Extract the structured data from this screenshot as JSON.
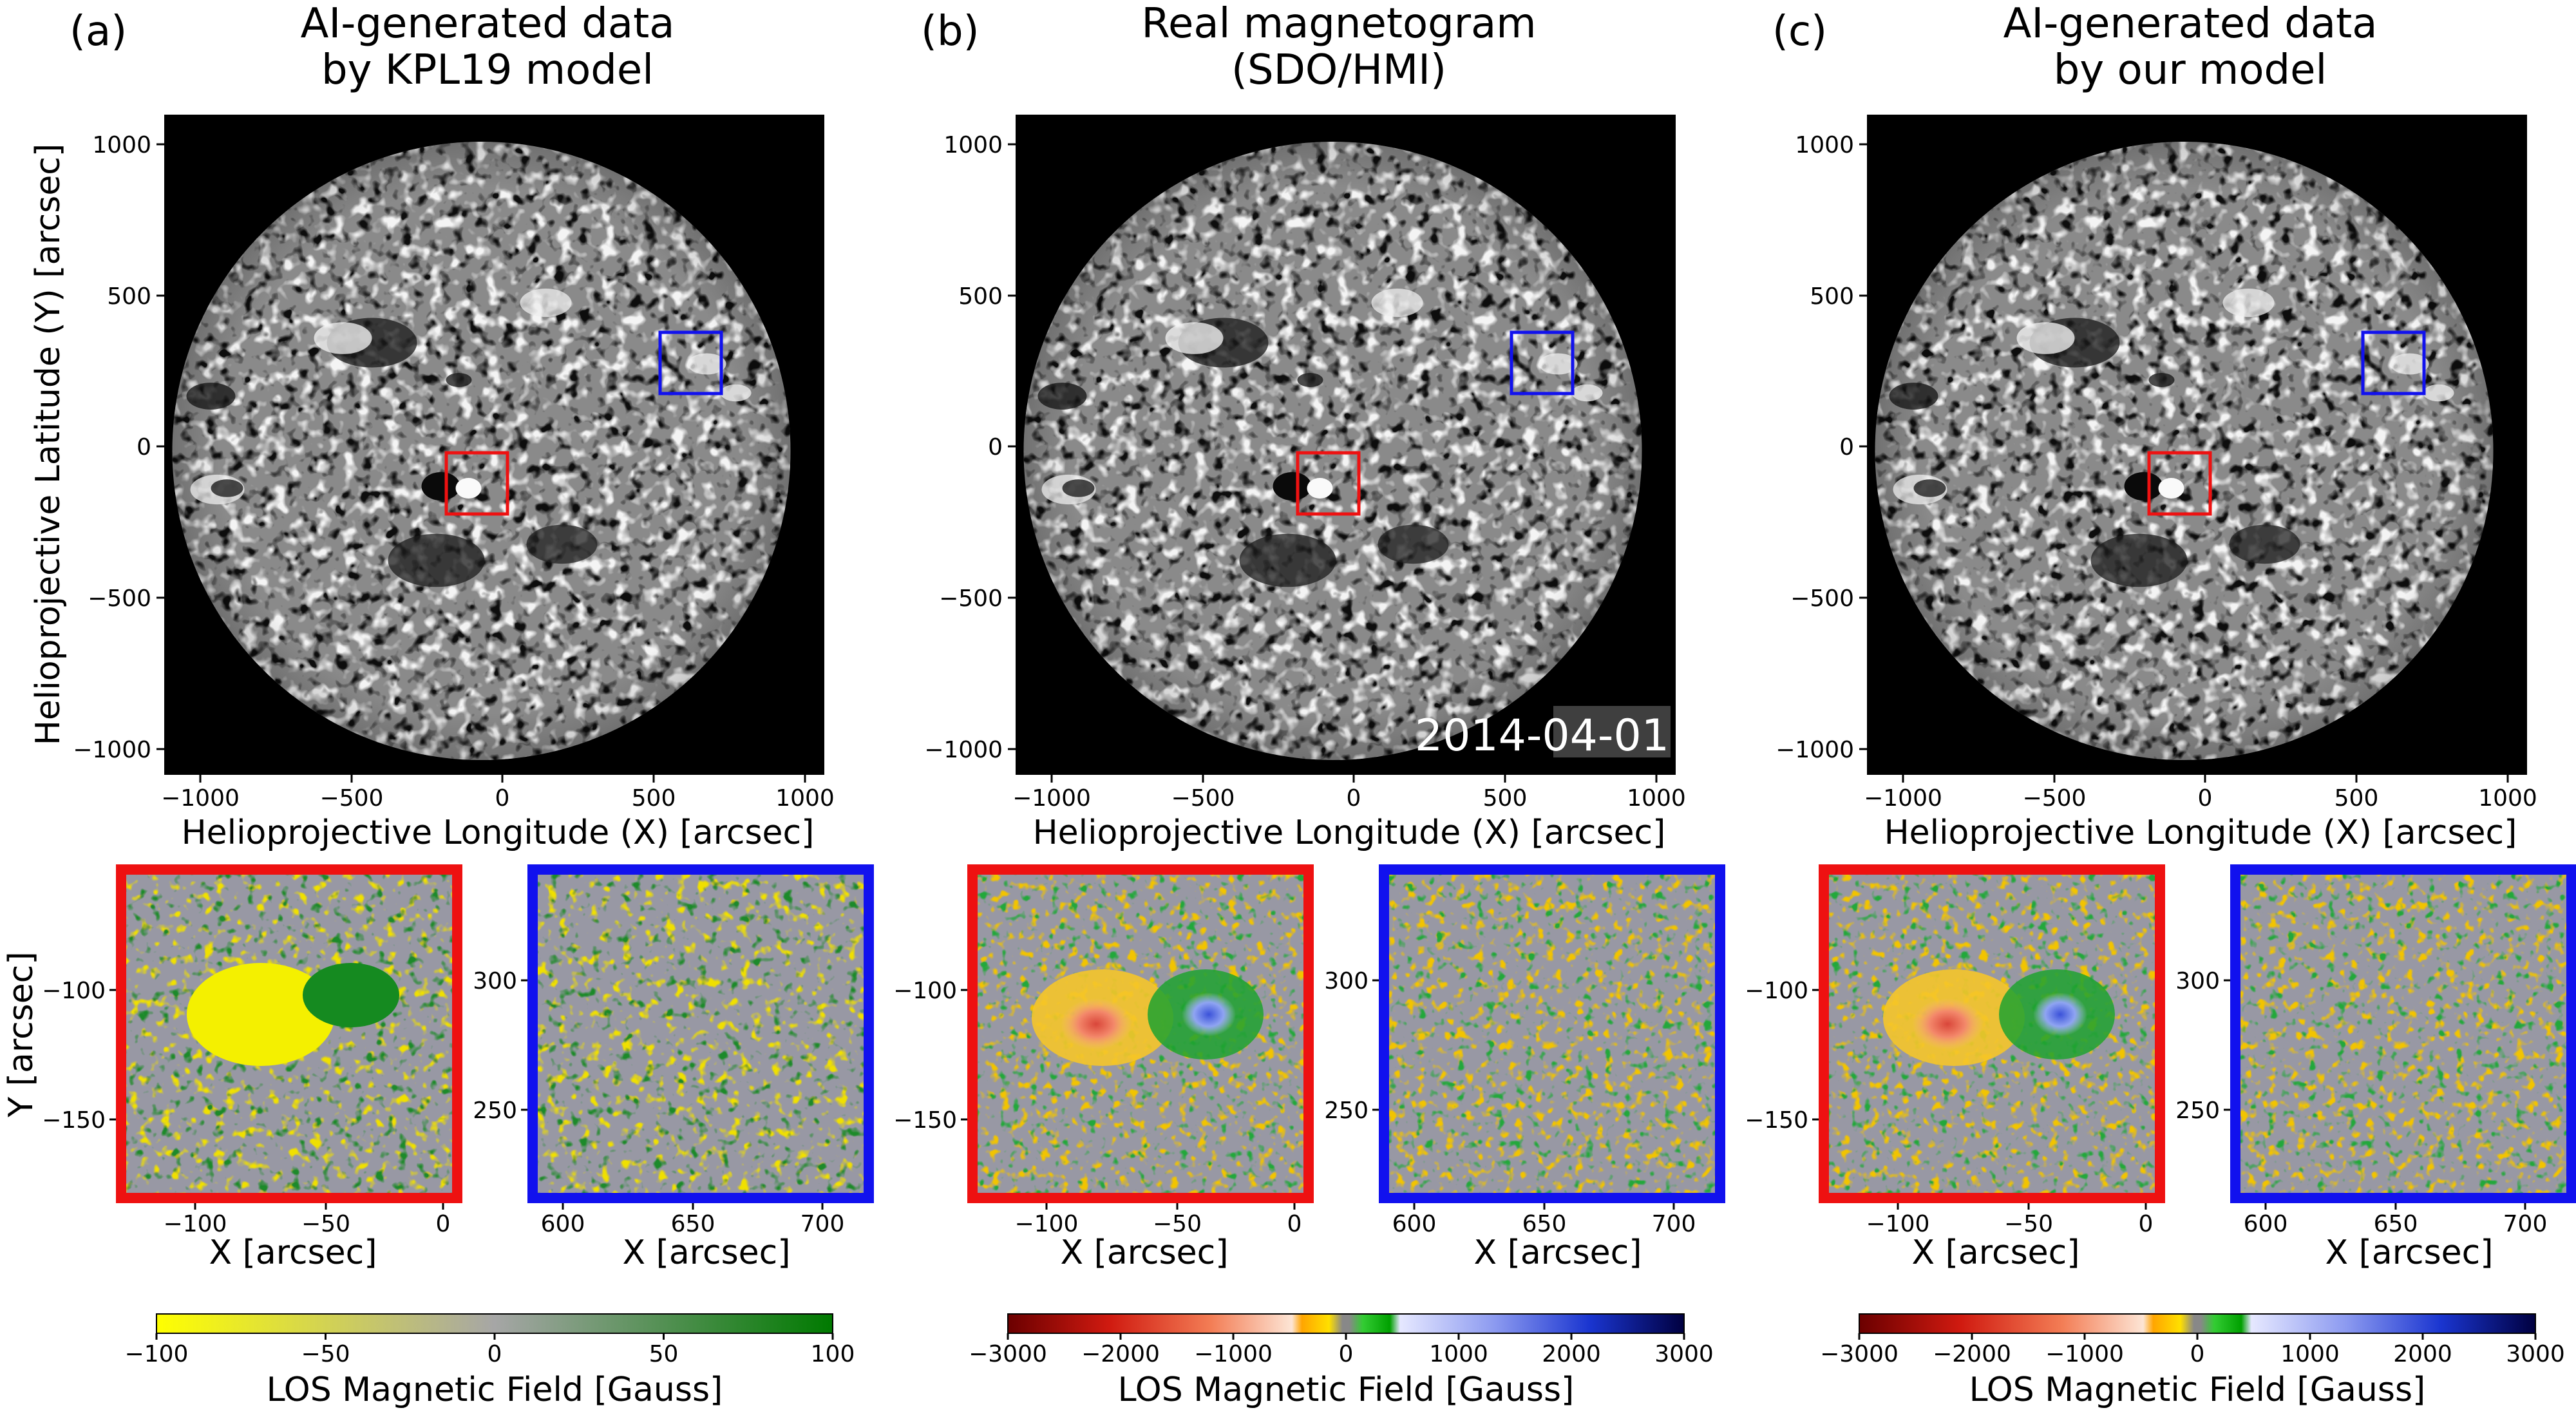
{
  "figure": {
    "panels": [
      {
        "id": "a",
        "label": "(a)",
        "title_line1": "AI-generated data",
        "title_line2": "by KPL19 model",
        "colormap": "yellow-gray-green",
        "colorbar_ticks": [
          "−100",
          "−50",
          "0",
          "50",
          "100"
        ],
        "colorbar_label": "LOS Magnetic Field [Gauss]"
      },
      {
        "id": "b",
        "label": "(b)",
        "title_line1": "Real magnetogram",
        "title_line2": "(SDO/HMI)",
        "date_stamp": "2014-04-01",
        "colormap": "red-yellow-green-blue",
        "colorbar_ticks": [
          "−3000",
          "−2000",
          "−1000",
          "0",
          "1000",
          "2000",
          "3000"
        ],
        "colorbar_label": "LOS Magnetic Field [Gauss]"
      },
      {
        "id": "c",
        "label": "(c)",
        "title_line1": "AI-generated data",
        "title_line2": "by our model",
        "colormap": "red-yellow-green-blue",
        "colorbar_ticks": [
          "−3000",
          "−2000",
          "−1000",
          "0",
          "1000",
          "2000",
          "3000"
        ],
        "colorbar_label": "LOS Magnetic Field [Gauss]"
      }
    ],
    "full_disk": {
      "x_ticks": [
        "−1000",
        "−500",
        "0",
        "500",
        "1000"
      ],
      "y_ticks": [
        "1000",
        "500",
        "0",
        "−500",
        "−1000"
      ],
      "xlabel": "Helioprojective Longitude (X) [arcsec]",
      "ylabel": "Helioprojective Latitude (Y) [arcsec]"
    },
    "zoom_red": {
      "border_color": "#ee1111",
      "x_ticks": [
        "−100",
        "−50",
        "0"
      ],
      "y_ticks": [
        "−100",
        "−150"
      ],
      "xlabel": "X [arcsec]",
      "ylabel": "Y [arcsec]"
    },
    "zoom_blue": {
      "border_color": "#1111ee",
      "x_ticks": [
        "600",
        "650",
        "700"
      ],
      "y_ticks": [
        "300",
        "250"
      ],
      "xlabel": "X [arcsec]"
    }
  }
}
